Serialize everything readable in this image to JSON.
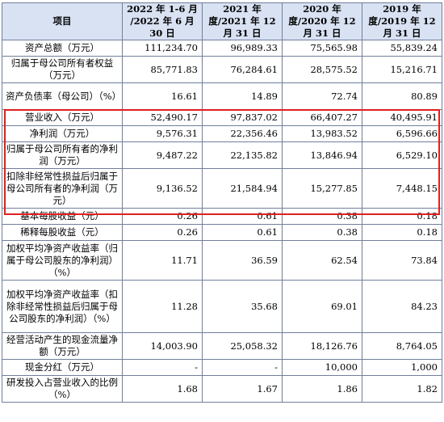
{
  "header": {
    "item": "项目",
    "col1": "2022 年 1-6 月 /2022 年 6 月 30 日",
    "col2": "2021 年度/2021 年 12 月 31 日",
    "col3": "2020 年度/2020 年 12 月 31 日",
    "col4": "2019 年度/2019 年 12 月 31 日"
  },
  "rows": [
    {
      "label": "资产总额（万元）",
      "v": [
        "111,234.70",
        "96,989.33",
        "75,565.98",
        "55,839.24"
      ]
    },
    {
      "label": "归属于母公司所有者权益（万元）",
      "v": [
        "85,771.83",
        "76,284.61",
        "28,575.52",
        "15,216.71"
      ]
    },
    {
      "label": "资产负债率（母公司）（%）",
      "v": [
        "16.61",
        "14.89",
        "72.74",
        "80.89"
      ]
    },
    {
      "label": "营业收入（万元）",
      "v": [
        "52,490.17",
        "97,837.02",
        "66,407.27",
        "40,495.91"
      ]
    },
    {
      "label": "净利润（万元）",
      "v": [
        "9,576.31",
        "22,356.46",
        "13,983.52",
        "6,596.66"
      ]
    },
    {
      "label": "归属于母公司所有者的净利润（万元）",
      "v": [
        "9,487.22",
        "22,135.82",
        "13,846.94",
        "6,529.10"
      ]
    },
    {
      "label": "扣除非经常性损益后归属于母公司所有者的净利润（万元）",
      "v": [
        "9,136.52",
        "21,584.94",
        "15,277.85",
        "7,448.15"
      ]
    },
    {
      "label": "基本每股收益（元）",
      "v": [
        "0.26",
        "0.61",
        "0.38",
        "0.18"
      ]
    },
    {
      "label": "稀释每股收益（元）",
      "v": [
        "0.26",
        "0.61",
        "0.38",
        "0.18"
      ]
    },
    {
      "label": "加权平均净资产收益率（归属于母公司股东的净利润）（%）",
      "v": [
        "11.71",
        "36.59",
        "62.54",
        "73.84"
      ]
    },
    {
      "label": "加权平均净资产收益率（扣除非经常性损益后归属于母公司股东的净利润）（%）",
      "v": [
        "11.28",
        "35.68",
        "69.01",
        "84.23"
      ]
    },
    {
      "label": "经营活动产生的现金流量净额（万元）",
      "v": [
        "14,003.90",
        "25,058.32",
        "18,126.76",
        "8,764.05"
      ]
    },
    {
      "label": "现金分红（万元）",
      "v": [
        "-",
        "-",
        "10,000",
        "1,000"
      ]
    },
    {
      "label": "研发投入占营业收入的比例（%）",
      "v": [
        "1.68",
        "1.67",
        "1.86",
        "1.82"
      ]
    }
  ],
  "colors": {
    "header_bg": "#d9e2f3",
    "highlight": "#e02020",
    "border": "#6f7f9a"
  }
}
